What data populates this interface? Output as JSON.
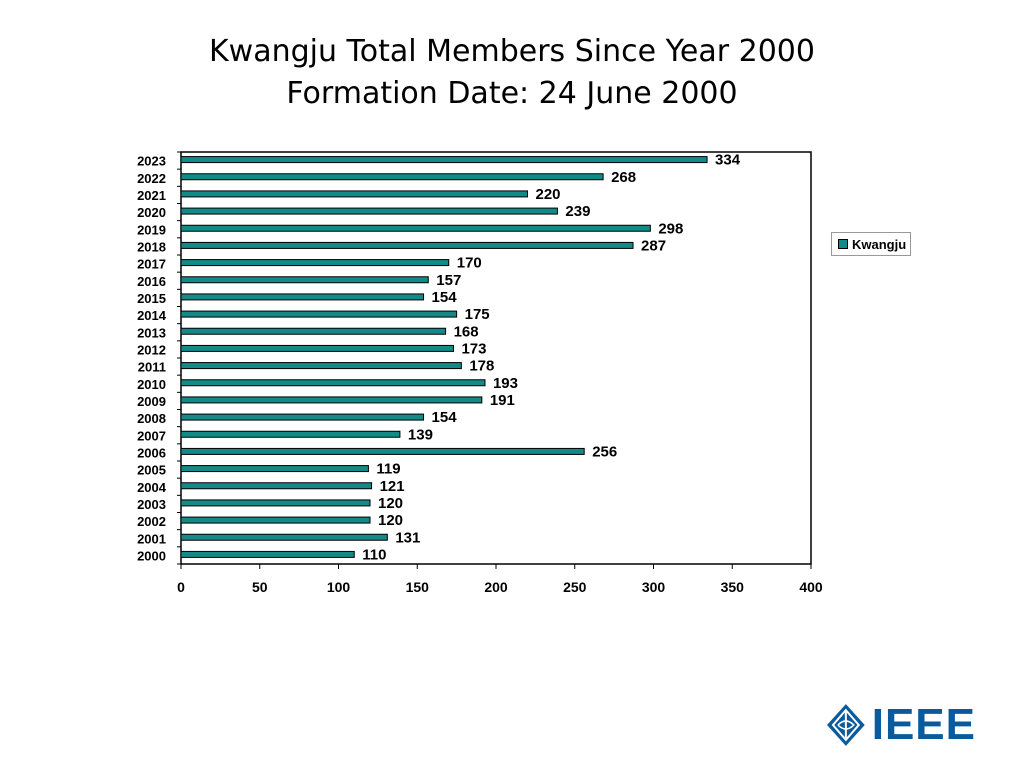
{
  "title_line1": "Kwangju Total Members Since Year 2000",
  "title_line2": "Formation Date: 24 June 2000",
  "colors": {
    "bar": "#138a87",
    "logo": "#0a5a9c"
  },
  "legend_label": "Kwangju",
  "logo_text": "IEEE",
  "chart_data": {
    "type": "bar",
    "orientation": "horizontal",
    "categories": [
      "2023",
      "2022",
      "2021",
      "2020",
      "2019",
      "2018",
      "2017",
      "2016",
      "2015",
      "2014",
      "2013",
      "2012",
      "2011",
      "2010",
      "2009",
      "2008",
      "2007",
      "2006",
      "2005",
      "2004",
      "2003",
      "2002",
      "2001",
      "2000"
    ],
    "series": [
      {
        "name": "Kwangju",
        "values": [
          334,
          268,
          220,
          239,
          298,
          287,
          170,
          157,
          154,
          175,
          168,
          173,
          178,
          193,
          191,
          154,
          139,
          256,
          119,
          121,
          120,
          120,
          131,
          110
        ]
      }
    ],
    "xlim": [
      0,
      400
    ],
    "xticks": [
      0,
      50,
      100,
      150,
      200,
      250,
      300,
      350,
      400
    ],
    "data_labels": true,
    "legend_position": "right",
    "grid": false
  }
}
